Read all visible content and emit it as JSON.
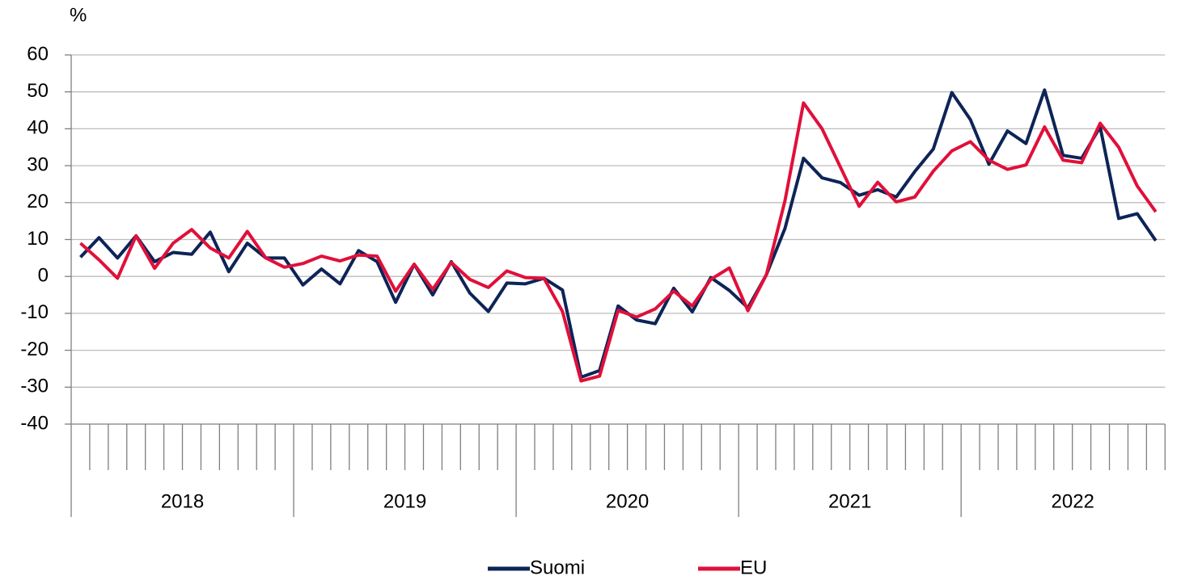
{
  "chart_data": {
    "type": "line",
    "y_unit_label": "%",
    "year_groups": [
      {
        "label": "2018",
        "months": 12
      },
      {
        "label": "2019",
        "months": 12
      },
      {
        "label": "2020",
        "months": 12
      },
      {
        "label": "2021",
        "months": 12
      },
      {
        "label": "2022",
        "months": 11
      }
    ],
    "ylim": [
      -40,
      60
    ],
    "yticks": [
      -40,
      -30,
      -20,
      -10,
      0,
      10,
      20,
      30,
      40,
      50,
      60
    ],
    "grid": true,
    "legend": "bottom",
    "series": [
      {
        "name": "Suomi",
        "color": "#0d2457",
        "values": [
          5.2,
          10.5,
          5,
          11,
          4,
          6.5,
          6,
          12,
          1.3,
          9,
          5,
          5,
          -2.3,
          2,
          -2,
          7,
          4,
          -7,
          3.3,
          -5,
          4,
          -4.5,
          -9.5,
          -1.8,
          -2,
          -0.5,
          -3.7,
          -27.3,
          -25.5,
          -8,
          -11.8,
          -12.8,
          -3.2,
          -9.6,
          -0.3,
          -3.8,
          -8.5,
          0.5,
          13,
          32,
          26.7,
          25.4,
          22,
          23.5,
          21.5,
          28.4,
          34.5,
          49.8,
          42.5,
          30.4,
          39.4,
          36,
          50.5,
          32.8,
          32,
          40.5,
          15.7,
          17,
          9.7
        ]
      },
      {
        "name": "EU",
        "color": "#e0103a",
        "values": [
          9,
          4.5,
          -0.5,
          11,
          2.2,
          9,
          12.7,
          7.7,
          5,
          12.2,
          5,
          2.5,
          3.5,
          5.5,
          4.2,
          5.8,
          5.5,
          -4,
          3.3,
          -3.5,
          3.8,
          -0.8,
          -3,
          1.5,
          -0.3,
          -0.5,
          -9.5,
          -28.3,
          -27,
          -9.2,
          -11,
          -8.8,
          -4,
          -8,
          -0.8,
          2.3,
          -9.3,
          0.5,
          20.5,
          47,
          40,
          29.5,
          19,
          25.5,
          20.2,
          21.5,
          28.5,
          34,
          36.5,
          31.5,
          29,
          30.2,
          40.5,
          31.5,
          30.8,
          41.5,
          35,
          24.5,
          17.5
        ]
      }
    ]
  }
}
